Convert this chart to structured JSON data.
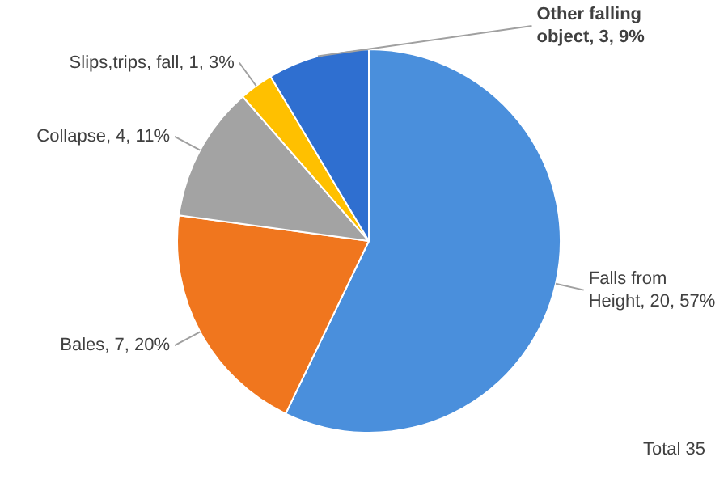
{
  "chart_data": {
    "type": "pie",
    "categories": [
      "Falls from Height",
      "Bales",
      "Collapse",
      "Slips,trips, fall",
      "Other falling object"
    ],
    "values": [
      20,
      7,
      4,
      1,
      3
    ],
    "colors": [
      "#4a8fdc",
      "#f0761e",
      "#a3a3a3",
      "#ffc000",
      "#2f6fd0"
    ],
    "value_labels": [
      "20, 57%",
      "7, 20%",
      "4, 11%",
      "1, 3%",
      "3, 9%"
    ],
    "legend": false,
    "annotations": [
      "Total 35"
    ]
  }
}
